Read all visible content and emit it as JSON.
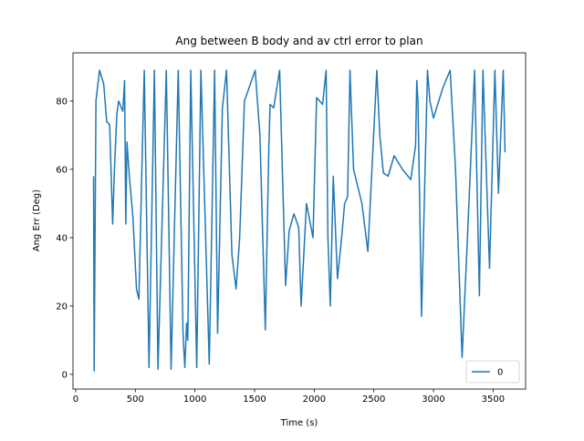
{
  "chart_data": {
    "type": "line",
    "title": "Ang between B body and av ctrl error to plan",
    "x_label": "Time (s)",
    "y_label": "Ang Err (Deg)",
    "x": [
      150,
      155,
      170,
      200,
      235,
      260,
      285,
      310,
      325,
      345,
      360,
      395,
      410,
      420,
      430,
      450,
      480,
      510,
      530,
      555,
      575,
      615,
      660,
      690,
      760,
      800,
      860,
      900,
      915,
      930,
      940,
      965,
      1015,
      1050,
      1120,
      1165,
      1190,
      1230,
      1265,
      1310,
      1345,
      1375,
      1415,
      1505,
      1545,
      1590,
      1620,
      1630,
      1660,
      1710,
      1760,
      1790,
      1830,
      1870,
      1890,
      1935,
      1990,
      2020,
      2070,
      2100,
      2115,
      2135,
      2160,
      2195,
      2230,
      2255,
      2280,
      2300,
      2330,
      2400,
      2450,
      2480,
      2525,
      2550,
      2580,
      2620,
      2670,
      2740,
      2810,
      2850,
      2860,
      2870,
      2900,
      2950,
      2970,
      3000,
      3080,
      3140,
      3185,
      3240,
      3285,
      3345,
      3385,
      3415,
      3470,
      3515,
      3545,
      3585,
      3600
    ],
    "series": [
      {
        "name": "0",
        "color": "#1f77b4",
        "values": [
          58,
          1,
          80,
          89,
          85,
          74,
          73,
          44,
          60,
          76,
          80,
          77,
          86,
          44,
          68,
          58,
          46,
          25,
          22,
          60,
          89,
          2,
          89,
          1.5,
          89,
          1.5,
          89,
          12,
          2,
          15,
          10,
          89,
          2,
          89,
          3,
          89,
          12,
          78,
          89,
          35,
          25,
          40,
          80,
          89,
          70,
          13,
          67,
          79,
          78,
          89,
          26,
          42,
          47,
          43,
          20,
          50,
          40,
          81,
          79,
          89,
          40,
          20,
          58,
          28,
          40,
          50,
          52,
          89,
          60,
          50,
          36,
          57,
          89,
          70,
          59,
          58,
          64,
          60,
          57,
          67,
          86,
          80,
          17,
          89,
          80,
          75,
          84,
          89,
          60,
          5,
          40,
          89,
          23,
          89,
          31,
          89,
          53,
          89,
          65
        ]
      }
    ],
    "xlim": [
      -22.5,
      3772.5
    ],
    "ylim": [
      -4.3,
      94.1
    ],
    "xticks": [
      0,
      500,
      1000,
      1500,
      2000,
      2500,
      3000,
      3500
    ],
    "yticks": [
      0,
      20,
      40,
      60,
      80
    ],
    "legend": "lower right"
  }
}
